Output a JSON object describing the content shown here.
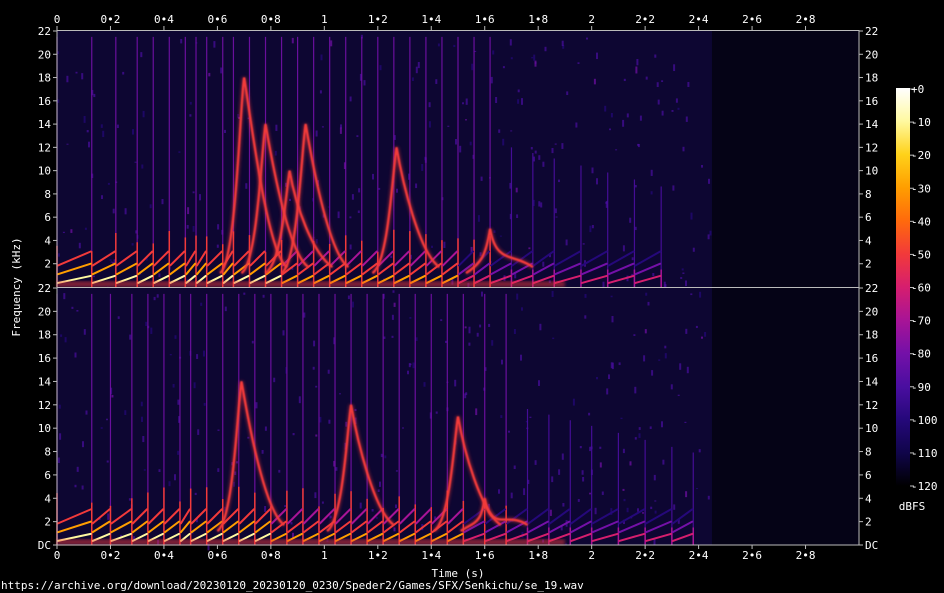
{
  "source_url": "https://archive.org/download/20230120_20230120_0230/Speder2/Games/SFX/Senkichu/se_19.wav",
  "chart_data": {
    "type": "heatmap",
    "subtype": "spectrogram",
    "channels": 2,
    "xlabel": "Time (s)",
    "ylabel": "Frequency (kHz)",
    "xlim": [
      0,
      3.0
    ],
    "ylim_khz": [
      0,
      22
    ],
    "x_ticks": [
      0,
      0.2,
      0.4,
      0.6,
      0.8,
      1,
      1.2,
      1.4,
      1.6,
      1.8,
      2,
      2.2,
      2.4,
      2.6,
      2.8
    ],
    "x_tick_labels": [
      "0",
      "0•2",
      "0•4",
      "0•6",
      "0•8",
      "1",
      "1•2",
      "1•4",
      "1•6",
      "1•8",
      "2",
      "2•2",
      "2•4",
      "2•6",
      "2•8"
    ],
    "y_ticks": [
      0,
      2,
      4,
      6,
      8,
      10,
      12,
      14,
      16,
      18,
      20,
      22
    ],
    "y_tick_labels_top": [
      "",
      "2",
      "4",
      "6",
      "8",
      "10",
      "12",
      "14",
      "16",
      "18",
      "20",
      "22"
    ],
    "y_tick_labels_bottom": [
      "DC",
      "2",
      "4",
      "6",
      "8",
      "10",
      "12",
      "14",
      "16",
      "18",
      "20",
      "22"
    ],
    "colorbar": {
      "label": "dBFS",
      "range": [
        -120,
        0
      ],
      "ticks": [
        0,
        -10,
        -20,
        -30,
        -40,
        -50,
        -60,
        -70,
        -80,
        -90,
        -100,
        -110,
        -120
      ],
      "tick_labels": [
        "+0",
        "-10",
        "-20",
        "-30",
        "-40",
        "-50",
        "-60",
        "-70",
        "-80",
        "-90",
        "-100",
        "-110",
        "-120"
      ],
      "colors": [
        "#ffffff",
        "#fff9a0",
        "#ffd21a",
        "#ff9e00",
        "#ff6a0c",
        "#f23a3a",
        "#d61e6e",
        "#a81496",
        "#7410a8",
        "#4a0ea0",
        "#25087a",
        "#10054a",
        "#000000"
      ]
    },
    "sound_end_s": 2.45,
    "channel_1": {
      "transients_s": [
        0.0,
        0.13,
        0.22,
        0.3,
        0.36,
        0.42,
        0.48,
        0.52,
        0.56,
        0.62,
        0.66,
        0.72,
        0.78,
        0.84,
        0.9,
        0.96,
        1.02,
        1.08,
        1.14,
        1.2,
        1.26,
        1.32,
        1.38,
        1.44,
        1.5,
        1.56,
        1.62,
        1.7,
        1.78,
        1.86,
        1.96,
        2.06,
        2.16,
        2.26
      ],
      "sweeps": [
        {
          "peak_time_s": 0.7,
          "peak_freq_khz": 18
        },
        {
          "peak_time_s": 0.78,
          "peak_freq_khz": 14
        },
        {
          "peak_time_s": 0.87,
          "peak_freq_khz": 10
        },
        {
          "peak_time_s": 0.93,
          "peak_freq_khz": 14
        },
        {
          "peak_time_s": 1.27,
          "peak_freq_khz": 12
        },
        {
          "peak_time_s": 1.62,
          "peak_freq_khz": 5
        }
      ]
    },
    "channel_2": {
      "transients_s": [
        0.0,
        0.13,
        0.2,
        0.28,
        0.34,
        0.4,
        0.46,
        0.5,
        0.56,
        0.62,
        0.68,
        0.74,
        0.8,
        0.86,
        0.92,
        0.98,
        1.04,
        1.1,
        1.16,
        1.22,
        1.28,
        1.34,
        1.4,
        1.46,
        1.52,
        1.6,
        1.68,
        1.76,
        1.84,
        1.92,
        2.0,
        2.1,
        2.2,
        2.3,
        2.38
      ],
      "sweeps": [
        {
          "peak_time_s": 0.69,
          "peak_freq_khz": 14
        },
        {
          "peak_time_s": 1.1,
          "peak_freq_khz": 12
        },
        {
          "peak_time_s": 1.5,
          "peak_freq_khz": 11
        },
        {
          "peak_time_s": 1.6,
          "peak_freq_khz": 4
        }
      ]
    }
  }
}
